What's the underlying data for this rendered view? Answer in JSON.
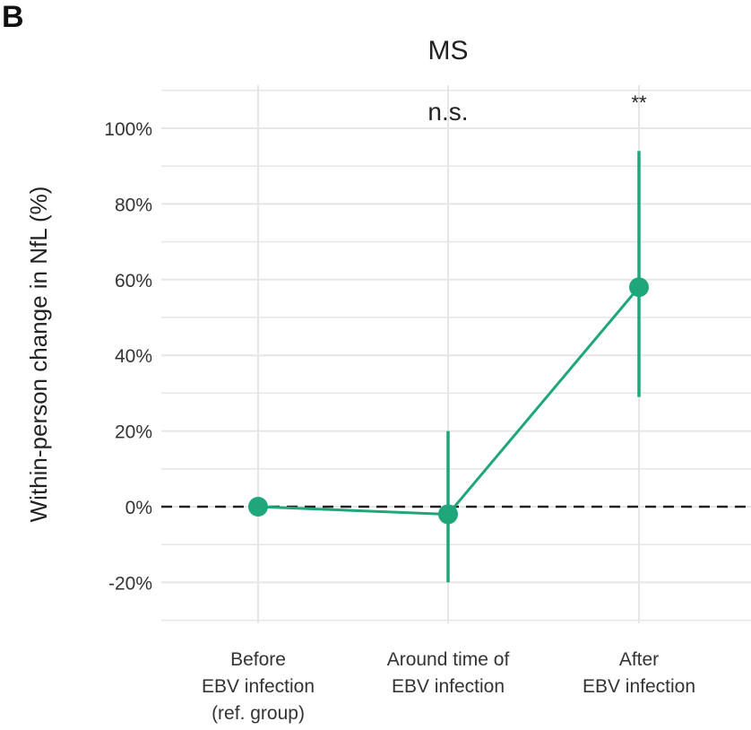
{
  "panel_label": "B",
  "chart_data": {
    "type": "line",
    "title": "MS",
    "ylabel": "Within-person change in NfL  (%)",
    "xlabel": "",
    "categories": [
      [
        "Before",
        "EBV infection",
        "(ref. group)"
      ],
      [
        "Around time of",
        "EBV infection"
      ],
      [
        "After",
        "EBV infection"
      ]
    ],
    "values": [
      0,
      -2,
      58
    ],
    "ci_lower": [
      0,
      -20,
      29
    ],
    "ci_upper": [
      0,
      20,
      94
    ],
    "annotations": [
      "",
      "n.s.",
      "**"
    ],
    "yticks": [
      100,
      80,
      60,
      40,
      20,
      0,
      -20
    ],
    "ytick_labels": [
      "100%",
      "80%",
      "60%",
      "40%",
      "20%",
      "0%",
      "-20%"
    ],
    "ylim": [
      -30,
      110
    ],
    "reference_line": 0,
    "grid": true,
    "color": "#1fa67a"
  }
}
